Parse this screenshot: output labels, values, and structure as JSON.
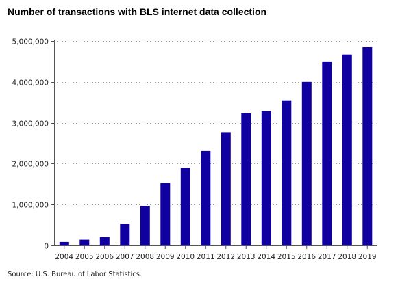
{
  "chart_data": {
    "type": "bar",
    "title": "Number of transactions with BLS internet data collection",
    "xlabel": "",
    "ylabel": "",
    "categories": [
      "2004",
      "2005",
      "2006",
      "2007",
      "2008",
      "2009",
      "2010",
      "2011",
      "2012",
      "2013",
      "2014",
      "2015",
      "2016",
      "2017",
      "2018",
      "2019"
    ],
    "values": [
      85000,
      140000,
      205000,
      530000,
      960000,
      1530000,
      1900000,
      2310000,
      2770000,
      3230000,
      3290000,
      3550000,
      4000000,
      4500000,
      4670000,
      4850000
    ],
    "ylim": [
      0,
      5000000
    ],
    "yticks": [
      0,
      1000000,
      2000000,
      3000000,
      4000000,
      5000000
    ],
    "ytick_labels": [
      "0",
      "1,000,000",
      "2,000,000",
      "3,000,000",
      "4,000,000",
      "5,000,000"
    ],
    "bar_color": "#1100a0",
    "grid": true,
    "legend": "none"
  },
  "source_note": "Source: U.S. Bureau of Labor Statistics."
}
